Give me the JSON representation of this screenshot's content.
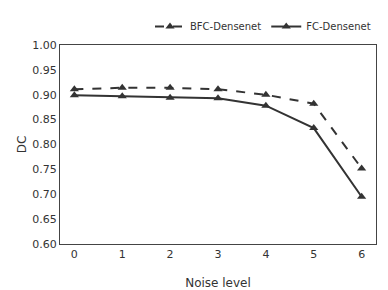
{
  "chart_data": {
    "type": "line",
    "x": [
      0,
      1,
      2,
      3,
      4,
      5,
      6
    ],
    "series": [
      {
        "name": "BFC-Densenet",
        "color": "#333333",
        "line_style": "dashed",
        "marker": "triangle",
        "values": [
          0.911,
          0.914,
          0.914,
          0.911,
          0.9,
          0.882,
          0.752
        ]
      },
      {
        "name": "FC-Densenet",
        "color": "#333333",
        "line_style": "solid",
        "marker": "triangle",
        "values": [
          0.899,
          0.897,
          0.894,
          0.893,
          0.878,
          0.833,
          0.695
        ]
      }
    ],
    "xlabel": "Noise level",
    "ylabel": "DC",
    "xlim": [
      -0.3,
      6.3
    ],
    "ylim": [
      0.6,
      1.0
    ],
    "xticks": [
      0,
      1,
      2,
      3,
      4,
      5,
      6
    ],
    "yticks": [
      {
        "value": 0.6,
        "label": "0.60"
      },
      0.65,
      {
        "value": 0.7,
        "label": "0.70"
      },
      0.75,
      {
        "value": 0.8,
        "label": "0.80"
      },
      0.85,
      {
        "value": 0.9,
        "label": "0.90"
      },
      0.95,
      {
        "value": 1.0,
        "label": "1.00"
      }
    ],
    "grid": false,
    "legend": "upper right"
  }
}
